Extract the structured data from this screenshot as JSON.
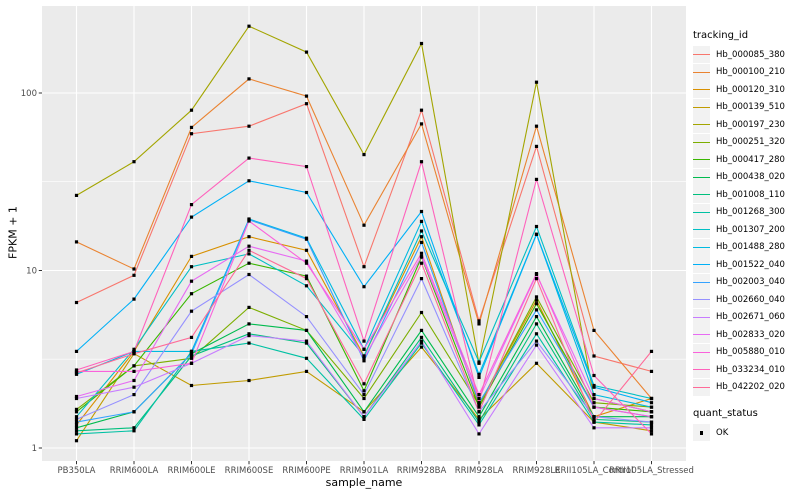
{
  "figure": {
    "background": "#FFFFFF",
    "panel_background": "#EBEBEB",
    "gridline_color": "#FFFFFF",
    "axis_text_color": "#4D4D4D",
    "tick_color": "#333333",
    "point_color": "#000000"
  },
  "chart_data": {
    "type": "line",
    "title": "",
    "xlabel": "sample_name",
    "ylabel": "FPKM + 1",
    "y_scale": "log10",
    "ylim": [
      1,
      300
    ],
    "y_ticks": [
      1,
      10,
      100
    ],
    "grid": "on",
    "marker": "black-square",
    "categories": [
      "PB350LA",
      "RRIM600LA",
      "RRIM600LE",
      "RRIM600SE",
      "RRIM600PE",
      "RRIM901LA",
      "RRIM928BA",
      "RRIM928LA",
      "RRIM928LE",
      "RRII105LA_Control",
      "RRII105LA_Stressed"
    ],
    "series": [
      {
        "name": "Hb_000085_380",
        "color": "#F8766D",
        "values": [
          6.6,
          9.4,
          59,
          65,
          87,
          10.5,
          80,
          5.2,
          50,
          3.3,
          2.7
        ]
      },
      {
        "name": "Hb_000100_210",
        "color": "#EA8331",
        "values": [
          14.5,
          10.2,
          64,
          120,
          96,
          18,
          67,
          5.0,
          65,
          4.6,
          1.9
        ]
      },
      {
        "name": "Hb_000120_310",
        "color": "#D89000",
        "values": [
          1.35,
          3.5,
          12,
          15.5,
          13,
          3.3,
          15.5,
          1.75,
          6.8,
          1.5,
          1.9
        ]
      },
      {
        "name": "Hb_000139_510",
        "color": "#C09B00",
        "values": [
          1.1,
          3.4,
          2.25,
          2.4,
          2.7,
          1.6,
          3.7,
          1.45,
          3.0,
          1.4,
          1.25
        ]
      },
      {
        "name": "Hb_000197_230",
        "color": "#A3A500",
        "values": [
          26.5,
          41,
          80,
          238,
          170,
          45,
          190,
          3.0,
          115,
          1.9,
          1.6
        ]
      },
      {
        "name": "Hb_000251_320",
        "color": "#7CAE00",
        "values": [
          1.65,
          2.9,
          3.2,
          6.2,
          4.6,
          1.9,
          5.8,
          1.75,
          7.1,
          1.8,
          1.7
        ]
      },
      {
        "name": "Hb_000417_280",
        "color": "#39B600",
        "values": [
          1.6,
          2.9,
          7.4,
          11,
          9.3,
          2.1,
          11.9,
          1.7,
          6.5,
          1.7,
          1.6
        ]
      },
      {
        "name": "Hb_000438_020",
        "color": "#00BB4E",
        "values": [
          1.3,
          1.6,
          3.4,
          5.0,
          4.6,
          1.6,
          4.6,
          1.5,
          5.5,
          1.5,
          1.5
        ]
      },
      {
        "name": "Hb_001008_110",
        "color": "#00BF7D",
        "values": [
          1.25,
          1.3,
          3.3,
          4.4,
          3.9,
          1.5,
          4.2,
          1.4,
          5.0,
          1.45,
          1.4
        ]
      },
      {
        "name": "Hb_001268_300",
        "color": "#00C1A3",
        "values": [
          1.2,
          1.25,
          3.5,
          3.9,
          3.2,
          1.45,
          3.9,
          1.35,
          4.4,
          1.4,
          1.35
        ]
      },
      {
        "name": "Hb_001307_200",
        "color": "#00BFC4",
        "values": [
          1.5,
          3.6,
          10.5,
          12.4,
          8.2,
          3.3,
          16.7,
          3.05,
          17.7,
          2.25,
          1.9
        ]
      },
      {
        "name": "Hb_001488_280",
        "color": "#00BAE0",
        "values": [
          2.6,
          3.5,
          3.5,
          19.5,
          15.2,
          3.6,
          18.9,
          2.6,
          16,
          2.0,
          1.7
        ]
      },
      {
        "name": "Hb_001522_040",
        "color": "#00B0F6",
        "values": [
          3.5,
          6.9,
          20,
          32,
          27.5,
          8.1,
          21.5,
          2.5,
          16,
          2.2,
          1.8
        ]
      },
      {
        "name": "Hb_002003_040",
        "color": "#35A2FF",
        "values": [
          1.4,
          1.6,
          3.4,
          19.3,
          15.0,
          3.1,
          14.4,
          1.8,
          6.0,
          1.7,
          1.5
        ]
      },
      {
        "name": "Hb_002660_040",
        "color": "#9590FF",
        "values": [
          1.45,
          2.0,
          5.9,
          9.5,
          5.5,
          2.0,
          9.0,
          1.6,
          4.0,
          1.5,
          1.4
        ]
      },
      {
        "name": "Hb_002671_060",
        "color": "#C77CFF",
        "values": [
          1.9,
          2.2,
          3.0,
          4.3,
          4.0,
          1.5,
          4.0,
          1.2,
          3.8,
          1.3,
          1.3
        ]
      },
      {
        "name": "Hb_002833_020",
        "color": "#E76BF3",
        "values": [
          1.95,
          2.4,
          8.7,
          13.7,
          11.3,
          3.2,
          12.0,
          1.9,
          9.5,
          1.9,
          1.6
        ]
      },
      {
        "name": "Hb_005880_010",
        "color": "#FA62DB",
        "values": [
          2.7,
          2.7,
          3.0,
          19.0,
          11.0,
          3.6,
          12.5,
          2.0,
          9.6,
          1.7,
          1.5
        ]
      },
      {
        "name": "Hb_033234_010",
        "color": "#FF62BC",
        "values": [
          2.75,
          3.5,
          23.5,
          43,
          38.5,
          4.0,
          41,
          1.8,
          32.6,
          2.56,
          1.2
        ]
      },
      {
        "name": "Hb_042202_020",
        "color": "#FF6A98",
        "values": [
          2.65,
          3.4,
          4.2,
          13,
          9.0,
          2.3,
          11.0,
          1.6,
          9.0,
          1.4,
          3.5
        ]
      }
    ],
    "legend": {
      "title": "tracking_id",
      "position": "right"
    },
    "legend2": {
      "title": "quant_status",
      "entries": [
        {
          "label": "OK",
          "marker": "black-square"
        }
      ]
    }
  }
}
